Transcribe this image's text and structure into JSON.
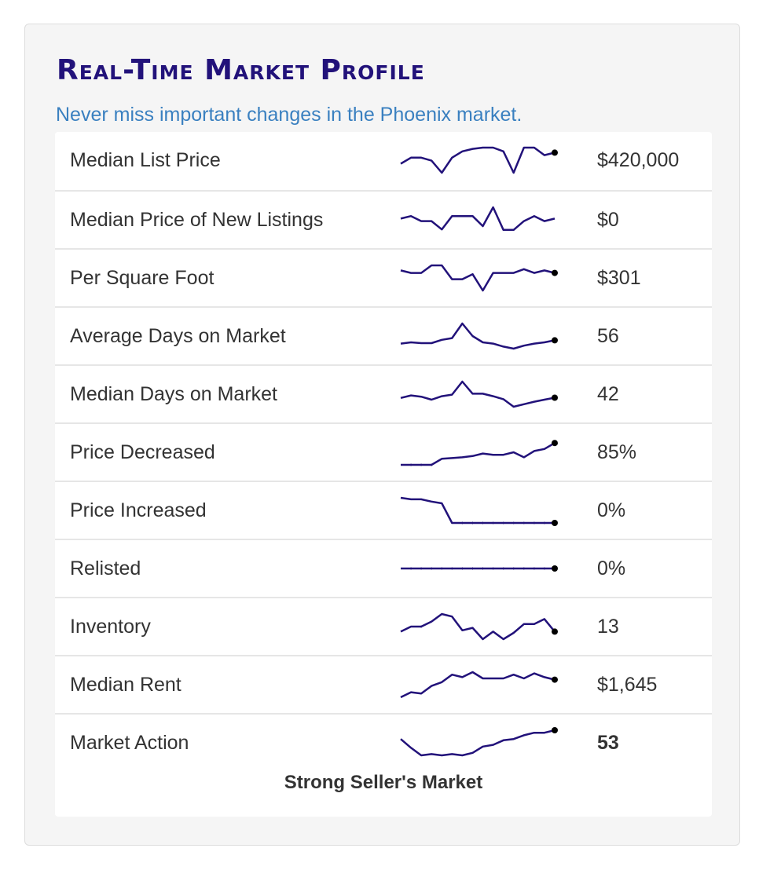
{
  "title": "Real-Time Market Profile",
  "subtitle": "Never miss important changes in the Phoenix market.",
  "colors": {
    "title": "#22127a",
    "subtitle": "#3a80c0",
    "sparkline": "#22127a",
    "endpoint": "#000000"
  },
  "rows": [
    {
      "label": "Median List Price",
      "value": "$420,000",
      "trend": [
        0.36,
        0.6,
        0.6,
        0.48,
        0.0,
        0.6,
        0.85,
        0.95,
        1.0,
        1.0,
        0.85,
        0.0,
        1.0,
        1.0,
        0.7,
        0.8
      ],
      "endpoint": true
    },
    {
      "label": "Median Price of New Listings",
      "value": "$0",
      "trend": [
        0.55,
        0.65,
        0.45,
        0.45,
        0.12,
        0.65,
        0.65,
        0.65,
        0.25,
        1.0,
        0.1,
        0.1,
        0.45,
        0.65,
        0.45,
        0.55
      ],
      "endpoint": false
    },
    {
      "label": "Per Square Foot",
      "value": "$301",
      "trend": [
        0.8,
        0.7,
        0.7,
        1.0,
        1.0,
        0.45,
        0.45,
        0.65,
        0.0,
        0.7,
        0.7,
        0.7,
        0.85,
        0.7,
        0.8,
        0.7
      ],
      "endpoint": true
    },
    {
      "label": "Average Days on Market",
      "value": "56",
      "trend": [
        0.2,
        0.25,
        0.22,
        0.22,
        0.35,
        0.42,
        1.0,
        0.5,
        0.25,
        0.2,
        0.08,
        0.0,
        0.12,
        0.2,
        0.25,
        0.33
      ],
      "endpoint": true
    },
    {
      "label": "Median Days on Market",
      "value": "42",
      "trend": [
        0.35,
        0.45,
        0.4,
        0.28,
        0.42,
        0.48,
        1.0,
        0.52,
        0.52,
        0.42,
        0.3,
        0.0,
        0.1,
        0.2,
        0.28,
        0.36
      ],
      "endpoint": true
    },
    {
      "label": "Price Decreased",
      "value": "85%",
      "trend": [
        0.0,
        0.0,
        0.0,
        0.0,
        0.24,
        0.27,
        0.3,
        0.35,
        0.45,
        0.4,
        0.4,
        0.5,
        0.3,
        0.55,
        0.63,
        0.87
      ],
      "endpoint": true
    },
    {
      "label": "Price Increased",
      "value": "0%",
      "trend": [
        1.0,
        0.94,
        0.94,
        0.85,
        0.78,
        0.0,
        0.0,
        0.0,
        0.0,
        0.0,
        0.0,
        0.0,
        0.0,
        0.0,
        0.0,
        0.0
      ],
      "endpoint": true
    },
    {
      "label": "Relisted",
      "value": "0%",
      "trend": [
        0.5,
        0.5,
        0.5,
        0.5,
        0.5,
        0.5,
        0.5,
        0.5,
        0.5,
        0.5,
        0.5,
        0.5,
        0.5,
        0.5,
        0.5,
        0.5
      ],
      "endpoint": true
    },
    {
      "label": "Inventory",
      "value": "13",
      "trend": [
        0.3,
        0.5,
        0.5,
        0.7,
        1.0,
        0.9,
        0.35,
        0.45,
        0.0,
        0.3,
        0.0,
        0.25,
        0.6,
        0.6,
        0.8,
        0.3
      ],
      "endpoint": true
    },
    {
      "label": "Median Rent",
      "value": "$1,645",
      "trend": [
        0.0,
        0.2,
        0.15,
        0.45,
        0.6,
        0.9,
        0.8,
        1.0,
        0.75,
        0.75,
        0.75,
        0.9,
        0.75,
        0.95,
        0.8,
        0.7
      ],
      "endpoint": true
    },
    {
      "label": "Market Action",
      "value": "53",
      "trend": [
        0.65,
        0.3,
        0.0,
        0.05,
        0.0,
        0.05,
        0.0,
        0.1,
        0.35,
        0.42,
        0.6,
        0.65,
        0.8,
        0.9,
        0.9,
        1.0
      ],
      "endpoint": true,
      "bold": true
    }
  ],
  "market_status": "Strong Seller's Market"
}
